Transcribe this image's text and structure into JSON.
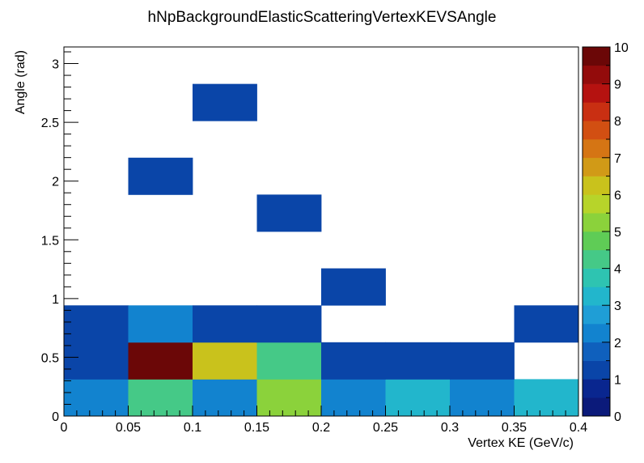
{
  "chart_data": {
    "type": "heatmap",
    "title": "hNpBackgroundElasticScatteringVertexKEVSAngle",
    "xlabel": "Vertex KE (GeV/c)",
    "ylabel": "Angle (rad)",
    "xlim": [
      0,
      0.4
    ],
    "ylim": [
      0,
      3.14159
    ],
    "x_bin_edges": [
      0,
      0.05,
      0.1,
      0.15,
      0.2,
      0.25,
      0.3,
      0.35,
      0.4
    ],
    "y_bin_width": 0.31416,
    "x_ticks": [
      "0",
      "0.05",
      "0.1",
      "0.15",
      "0.2",
      "0.25",
      "0.3",
      "0.35",
      "0.4"
    ],
    "x_tick_values": [
      0,
      0.05,
      0.1,
      0.15,
      0.2,
      0.25,
      0.3,
      0.35,
      0.4
    ],
    "y_ticks": [
      "0",
      "0.5",
      "1",
      "1.5",
      "2",
      "2.5",
      "3"
    ],
    "y_tick_values": [
      0,
      0.5,
      1,
      1.5,
      2,
      2.5,
      3
    ],
    "z_range": [
      0,
      10
    ],
    "z_ticks": [
      "0",
      "1",
      "2",
      "3",
      "4",
      "5",
      "6",
      "7",
      "8",
      "9",
      "10"
    ],
    "z_tick_values": [
      0,
      1,
      2,
      3,
      4,
      5,
      6,
      7,
      8,
      9,
      10
    ],
    "colorbar_colors": [
      "#0b1a7a",
      "#09268f",
      "#0a45a8",
      "#0f60bd",
      "#1283cf",
      "#1f9ed6",
      "#22b6cc",
      "#2ec4b1",
      "#45c987",
      "#5fcc56",
      "#8bd23b",
      "#b7d42a",
      "#c9c21c",
      "#d19a17",
      "#d57514",
      "#d24f12",
      "#c92f12",
      "#b51210",
      "#930b0b",
      "#6b0707"
    ],
    "cells": [
      {
        "x": 0.025,
        "y": 0.157,
        "value": 2
      },
      {
        "x": 0.075,
        "y": 0.157,
        "value": 4
      },
      {
        "x": 0.125,
        "y": 0.157,
        "value": 2
      },
      {
        "x": 0.175,
        "y": 0.157,
        "value": 5
      },
      {
        "x": 0.225,
        "y": 0.157,
        "value": 2
      },
      {
        "x": 0.275,
        "y": 0.157,
        "value": 3
      },
      {
        "x": 0.325,
        "y": 0.157,
        "value": 2
      },
      {
        "x": 0.375,
        "y": 0.157,
        "value": 3
      },
      {
        "x": 0.025,
        "y": 0.471,
        "value": 1
      },
      {
        "x": 0.075,
        "y": 0.471,
        "value": 10
      },
      {
        "x": 0.125,
        "y": 0.471,
        "value": 6
      },
      {
        "x": 0.175,
        "y": 0.471,
        "value": 4
      },
      {
        "x": 0.225,
        "y": 0.471,
        "value": 1
      },
      {
        "x": 0.275,
        "y": 0.471,
        "value": 1
      },
      {
        "x": 0.325,
        "y": 0.471,
        "value": 1
      },
      {
        "x": 0.025,
        "y": 0.785,
        "value": 1
      },
      {
        "x": 0.075,
        "y": 0.785,
        "value": 2
      },
      {
        "x": 0.125,
        "y": 0.785,
        "value": 1
      },
      {
        "x": 0.175,
        "y": 0.785,
        "value": 1
      },
      {
        "x": 0.375,
        "y": 0.785,
        "value": 1
      },
      {
        "x": 0.225,
        "y": 1.1,
        "value": 1
      },
      {
        "x": 0.175,
        "y": 1.728,
        "value": 1
      },
      {
        "x": 0.075,
        "y": 2.042,
        "value": 1
      },
      {
        "x": 0.125,
        "y": 2.67,
        "value": 1
      }
    ]
  }
}
